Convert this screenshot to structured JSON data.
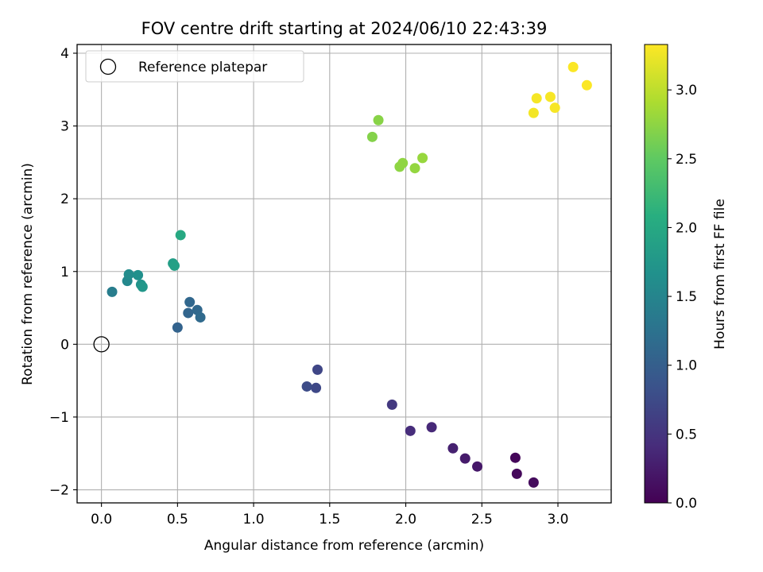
{
  "chart_data": {
    "type": "scatter",
    "title": "FOV centre drift starting at 2024/06/10 22:43:39",
    "xlabel": "Angular distance from reference (arcmin)",
    "ylabel": "Rotation from reference (arcmin)",
    "xlim": [
      -0.16,
      3.35
    ],
    "ylim": [
      -2.18,
      4.12
    ],
    "xticks": [
      0.0,
      0.5,
      1.0,
      1.5,
      2.0,
      2.5,
      3.0
    ],
    "xtick_labels": [
      "0.0",
      "0.5",
      "1.0",
      "1.5",
      "2.0",
      "2.5",
      "3.0"
    ],
    "yticks": [
      -2,
      -1,
      0,
      1,
      2,
      3,
      4
    ],
    "ytick_labels": [
      "−2",
      "−1",
      "0",
      "1",
      "2",
      "3",
      "4"
    ],
    "grid": true,
    "legend": {
      "placement": "top-left",
      "entries": [
        "Reference platepar"
      ]
    },
    "reference_point": {
      "x": 0.0,
      "y": 0.0,
      "label": "Reference platepar"
    },
    "colorbar": {
      "label": "Hours from first FF file",
      "range": [
        0.0,
        3.33
      ],
      "ticks": [
        0.0,
        0.5,
        1.0,
        1.5,
        2.0,
        2.5,
        3.0
      ],
      "tick_labels": [
        "0.0",
        "0.5",
        "1.0",
        "1.5",
        "2.0",
        "2.5",
        "3.0"
      ],
      "colormap": "viridis"
    },
    "points": [
      {
        "x": 2.72,
        "y": -1.56,
        "c": 0.05
      },
      {
        "x": 2.73,
        "y": -1.78,
        "c": 0.08
      },
      {
        "x": 2.84,
        "y": -1.9,
        "c": 0.1
      },
      {
        "x": 2.47,
        "y": -1.68,
        "c": 0.22
      },
      {
        "x": 2.39,
        "y": -1.57,
        "c": 0.25
      },
      {
        "x": 2.31,
        "y": -1.43,
        "c": 0.3
      },
      {
        "x": 2.17,
        "y": -1.14,
        "c": 0.38
      },
      {
        "x": 2.03,
        "y": -1.19,
        "c": 0.42
      },
      {
        "x": 1.91,
        "y": -0.83,
        "c": 0.55
      },
      {
        "x": 1.42,
        "y": -0.35,
        "c": 0.7
      },
      {
        "x": 1.41,
        "y": -0.6,
        "c": 0.72
      },
      {
        "x": 1.35,
        "y": -0.58,
        "c": 0.76
      },
      {
        "x": 0.5,
        "y": 0.23,
        "c": 1.05
      },
      {
        "x": 0.57,
        "y": 0.43,
        "c": 1.08
      },
      {
        "x": 0.58,
        "y": 0.58,
        "c": 1.1
      },
      {
        "x": 0.63,
        "y": 0.47,
        "c": 1.12
      },
      {
        "x": 0.65,
        "y": 0.37,
        "c": 1.15
      },
      {
        "x": 0.07,
        "y": 0.72,
        "c": 1.4
      },
      {
        "x": 0.17,
        "y": 0.87,
        "c": 1.55
      },
      {
        "x": 0.18,
        "y": 0.96,
        "c": 1.6
      },
      {
        "x": 0.24,
        "y": 0.95,
        "c": 1.65
      },
      {
        "x": 0.26,
        "y": 0.82,
        "c": 1.7
      },
      {
        "x": 0.27,
        "y": 0.79,
        "c": 1.75
      },
      {
        "x": 0.47,
        "y": 1.11,
        "c": 1.85
      },
      {
        "x": 0.48,
        "y": 1.08,
        "c": 1.88
      },
      {
        "x": 0.52,
        "y": 1.5,
        "c": 2.0
      },
      {
        "x": 1.78,
        "y": 2.85,
        "c": 2.7
      },
      {
        "x": 1.82,
        "y": 3.08,
        "c": 2.72
      },
      {
        "x": 1.96,
        "y": 2.44,
        "c": 2.75
      },
      {
        "x": 1.98,
        "y": 2.49,
        "c": 2.76
      },
      {
        "x": 2.06,
        "y": 2.42,
        "c": 2.78
      },
      {
        "x": 2.11,
        "y": 2.56,
        "c": 2.8
      },
      {
        "x": 2.84,
        "y": 3.18,
        "c": 3.28
      },
      {
        "x": 2.86,
        "y": 3.38,
        "c": 3.29
      },
      {
        "x": 2.95,
        "y": 3.4,
        "c": 3.3
      },
      {
        "x": 2.98,
        "y": 3.25,
        "c": 3.3
      },
      {
        "x": 3.1,
        "y": 3.81,
        "c": 3.32
      },
      {
        "x": 3.19,
        "y": 3.56,
        "c": 3.32
      }
    ]
  }
}
